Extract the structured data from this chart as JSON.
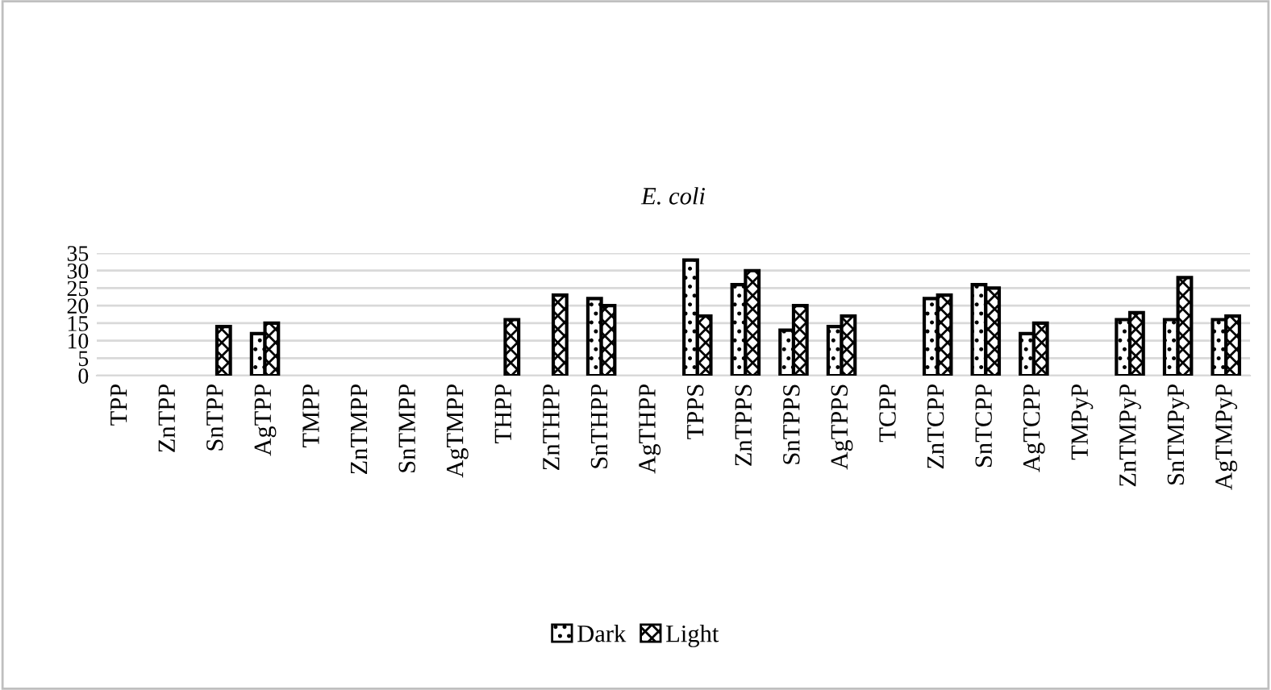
{
  "chart_data": {
    "type": "bar",
    "title": "E. coli",
    "categories": [
      "TPP",
      "ZnTPP",
      "SnTPP",
      "AgTPP",
      "TMPP",
      "ZnTMPP",
      "SnTMPP",
      "AgTMPP",
      "THPP",
      "ZnTHPP",
      "SnTHPP",
      "AgTHPP",
      "TPPS",
      "ZnTPPS",
      "SnTPPS",
      "AgTPPS",
      "TCPP",
      "ZnTCPP",
      "SnTCPP",
      "AgTCPP",
      "TMPyP",
      "ZnTMPyP",
      "SnTMPyP",
      "AgTMPyP"
    ],
    "series": [
      {
        "name": "Dark",
        "color": "#000000",
        "values": [
          null,
          null,
          null,
          12,
          null,
          null,
          null,
          null,
          null,
          null,
          22,
          null,
          33,
          26,
          13,
          14,
          null,
          22,
          26,
          12,
          null,
          16,
          16,
          16
        ]
      },
      {
        "name": "Light",
        "color": "#000000",
        "values": [
          null,
          null,
          14,
          15,
          null,
          null,
          null,
          null,
          16,
          23,
          20,
          null,
          17,
          30,
          20,
          17,
          null,
          23,
          25,
          15,
          null,
          18,
          28,
          17
        ]
      }
    ],
    "ylim": [
      0,
      35
    ],
    "yticks": [
      0,
      5,
      10,
      15,
      20,
      25,
      30,
      35
    ],
    "grid": "y",
    "legend": "bottom"
  }
}
